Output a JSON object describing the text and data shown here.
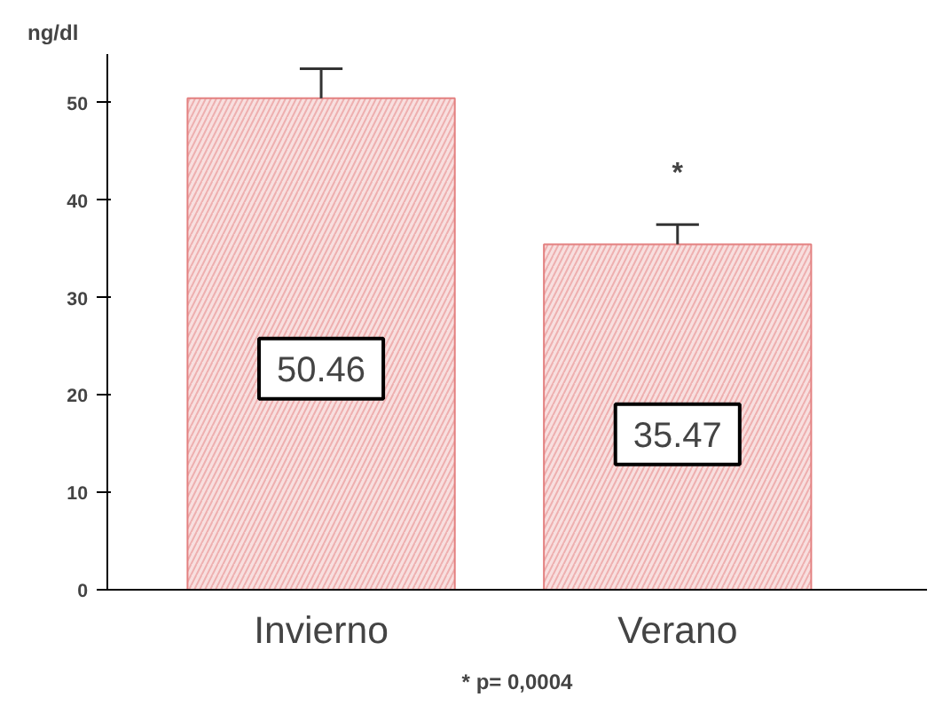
{
  "chart_data": {
    "type": "bar",
    "ylabel": "ng/dl",
    "categories": [
      "Invierno",
      "Verano"
    ],
    "color": "#e38080",
    "values": [
      50.46,
      35.47
    ],
    "errors": [
      [
        50.46,
        53.5
      ],
      [
        35.47,
        37.5
      ]
    ],
    "data_labels": true,
    "ylim": [
      0,
      55
    ],
    "yticks": [
      0,
      10,
      20,
      30,
      40,
      50
    ],
    "grid": false,
    "annotations": [
      "*",
      "* p= 0,0004"
    ]
  }
}
